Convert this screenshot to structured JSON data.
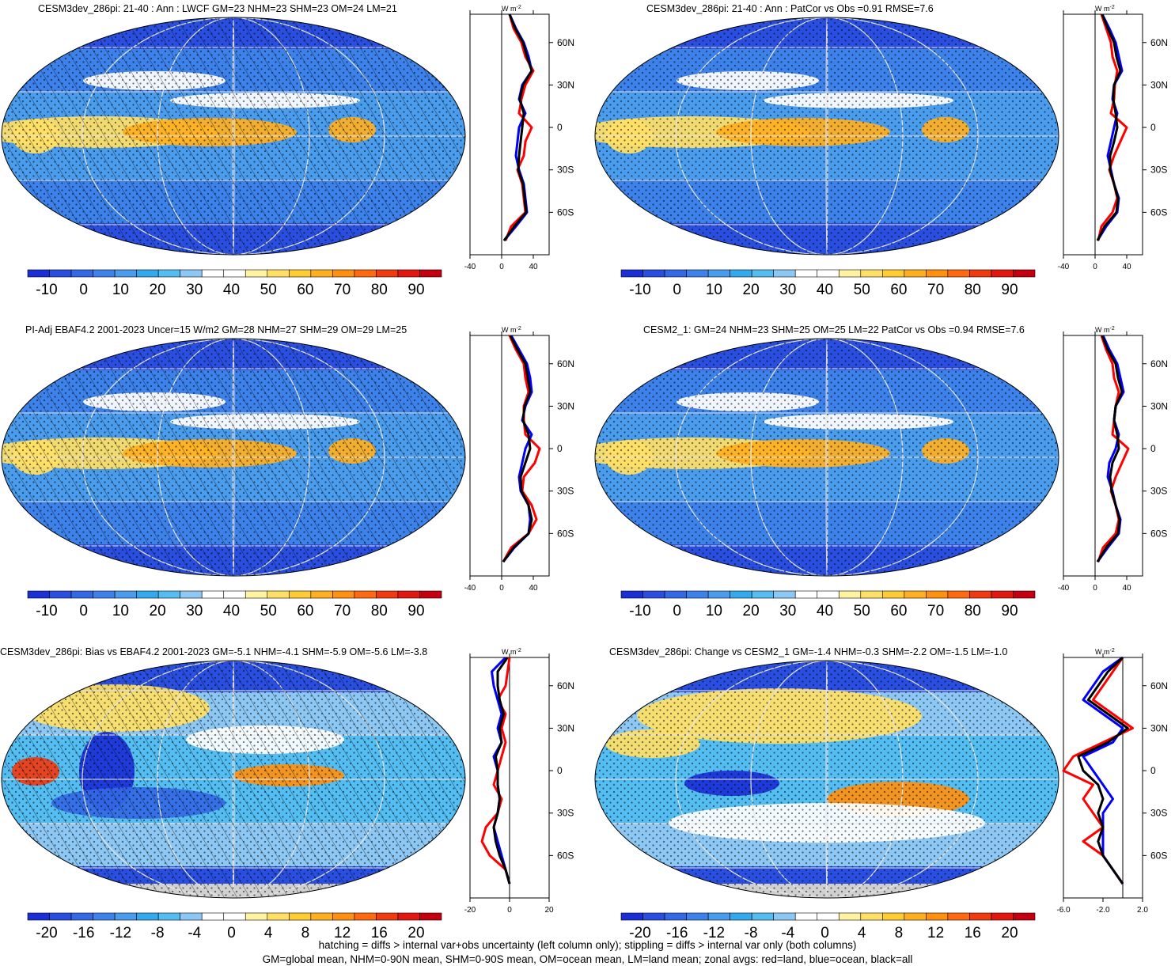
{
  "colors": {
    "scale": [
      "#1a2fd6",
      "#2a4fe0",
      "#3469e6",
      "#3d82ea",
      "#4a9ced",
      "#33a9ee",
      "#54bdf2",
      "#8cc8f3",
      "#ffffff",
      "#ffffff",
      "#fff2a0",
      "#ffe066",
      "#ffcc33",
      "#ffb020",
      "#ff9010",
      "#ff6a10",
      "#f03a10",
      "#e01810",
      "#c40010"
    ],
    "land": "#d0d0d0",
    "zonal_land": "#ff0000",
    "zonal_ocean": "#0000ff",
    "zonal_all": "#000000"
  },
  "units": {
    "w": "W",
    "m": "m",
    "exp": "-2"
  },
  "lat_labels": [
    "60N",
    "30N",
    "0",
    "30S",
    "60S"
  ],
  "panels": [
    {
      "title": "CESM3dev_286pi: 21-40 : Ann : LWCF GM=23 NHM=23 SHM=23 OM=24 LM=21",
      "hatched": true,
      "colorbar_labels": [
        "-10",
        "0",
        "10",
        "20",
        "30",
        "40",
        "50",
        "60",
        "70",
        "80",
        "90"
      ],
      "zonal_xticks": [
        "-40",
        "0",
        "40"
      ],
      "chart_data": {
        "type": "line",
        "ylabel": "",
        "xlim": [
          -40,
          60
        ],
        "x_axis_zero": 0,
        "series": [
          {
            "color_key": "zonal_land",
            "lat": [
              -80,
              -70,
              -60,
              -50,
              -40,
              -30,
              -20,
              -10,
              0,
              10,
              20,
              30,
              40,
              50,
              60,
              70,
              80
            ],
            "values": [
              5,
              12,
              30,
              28,
              26,
              20,
              28,
              30,
              38,
              22,
              25,
              30,
              40,
              30,
              25,
              15,
              10
            ]
          },
          {
            "color_key": "zonal_ocean",
            "lat": [
              -80,
              -70,
              -60,
              -50,
              -40,
              -30,
              -20,
              -10,
              0,
              10,
              20,
              30,
              40,
              50,
              60,
              70,
              80
            ],
            "values": [
              3,
              18,
              32,
              30,
              28,
              22,
              18,
              20,
              22,
              30,
              22,
              26,
              38,
              34,
              28,
              18,
              10
            ]
          },
          {
            "color_key": "zonal_all",
            "lat": [
              -80,
              -70,
              -60,
              -50,
              -40,
              -30,
              -20,
              -10,
              0,
              10,
              20,
              30,
              40,
              50,
              60,
              70,
              80
            ],
            "values": [
              3,
              16,
              31,
              29,
              27,
              21,
              22,
              24,
              26,
              28,
              23,
              27,
              38,
              32,
              27,
              17,
              10
            ]
          }
        ]
      }
    },
    {
      "title": "CESM3dev_286pi: 21-40 : Ann : PatCor vs Obs =0.91 RMSE=7.6",
      "hatched": false,
      "colorbar_labels": [
        "-10",
        "0",
        "10",
        "20",
        "30",
        "40",
        "50",
        "60",
        "70",
        "80",
        "90"
      ],
      "zonal_xticks": [
        "-40",
        "0",
        "40"
      ],
      "chart_data": {
        "type": "line",
        "ylabel": "",
        "xlim": [
          -40,
          60
        ],
        "x_axis_zero": 0,
        "series": [
          {
            "color_key": "zonal_land",
            "lat": [
              -80,
              -70,
              -60,
              -50,
              -40,
              -30,
              -20,
              -10,
              0,
              10,
              20,
              30,
              40,
              50,
              60,
              70,
              80
            ],
            "values": [
              4,
              8,
              22,
              28,
              24,
              18,
              24,
              32,
              40,
              20,
              24,
              25,
              28,
              22,
              20,
              14,
              8
            ]
          },
          {
            "color_key": "zonal_ocean",
            "lat": [
              -80,
              -70,
              -60,
              -50,
              -40,
              -30,
              -20,
              -10,
              0,
              10,
              20,
              30,
              40,
              50,
              60,
              70,
              80
            ],
            "values": [
              3,
              14,
              28,
              30,
              24,
              20,
              16,
              20,
              24,
              28,
              22,
              24,
              34,
              30,
              26,
              18,
              9
            ]
          },
          {
            "color_key": "zonal_all",
            "lat": [
              -80,
              -70,
              -60,
              -50,
              -40,
              -30,
              -20,
              -10,
              0,
              10,
              20,
              30,
              40,
              50,
              60,
              70,
              80
            ],
            "values": [
              3,
              12,
              27,
              29,
              24,
              19,
              19,
              24,
              28,
              26,
              23,
              24,
              32,
              27,
              24,
              16,
              9
            ]
          }
        ]
      }
    },
    {
      "title": "PI-Adj EBAF4.2 2001-2023 Uncer=15 W/m2 GM=28 NHM=27 SHM=29 OM=29 LM=25",
      "hatched": true,
      "colorbar_labels": [
        "-10",
        "0",
        "10",
        "20",
        "30",
        "40",
        "50",
        "60",
        "70",
        "80",
        "90"
      ],
      "zonal_xticks": [
        "-40",
        "0",
        "40"
      ],
      "chart_data": {
        "type": "line",
        "ylabel": "",
        "xlim": [
          -40,
          60
        ],
        "x_axis_zero": 0,
        "series": [
          {
            "color_key": "zonal_land",
            "lat": [
              -80,
              -70,
              -60,
              -50,
              -40,
              -30,
              -20,
              -10,
              0,
              10,
              20,
              30,
              40,
              50,
              60,
              70,
              80
            ],
            "values": [
              2,
              12,
              34,
              44,
              38,
              26,
              28,
              42,
              48,
              30,
              28,
              28,
              34,
              30,
              28,
              18,
              10
            ]
          },
          {
            "color_key": "zonal_ocean",
            "lat": [
              -80,
              -70,
              -60,
              -50,
              -40,
              -30,
              -20,
              -10,
              0,
              10,
              20,
              30,
              40,
              50,
              60,
              70,
              80
            ],
            "values": [
              2,
              16,
              34,
              36,
              34,
              24,
              22,
              26,
              30,
              38,
              26,
              30,
              38,
              36,
              32,
              22,
              12
            ]
          },
          {
            "color_key": "zonal_all",
            "lat": [
              -80,
              -70,
              -60,
              -50,
              -40,
              -30,
              -20,
              -10,
              0,
              10,
              20,
              30,
              40,
              50,
              60,
              70,
              80
            ],
            "values": [
              2,
              15,
              34,
              38,
              34,
              25,
              24,
              30,
              36,
              34,
              27,
              29,
              36,
              33,
              30,
              20,
              11
            ]
          }
        ]
      }
    },
    {
      "title": "CESM2_1: GM=24 NHM=23 SHM=25 OM=25 LM=22 PatCor vs Obs =0.94 RMSE=7.6",
      "hatched": false,
      "colorbar_labels": [
        "-10",
        "0",
        "10",
        "20",
        "30",
        "40",
        "50",
        "60",
        "70",
        "80",
        "90"
      ],
      "zonal_xticks": [
        "-40",
        "0",
        "40"
      ],
      "chart_data": {
        "type": "line",
        "ylabel": "",
        "xlim": [
          -40,
          60
        ],
        "x_axis_zero": 0,
        "series": [
          {
            "color_key": "zonal_land",
            "lat": [
              -80,
              -70,
              -60,
              -50,
              -40,
              -30,
              -20,
              -10,
              0,
              10,
              20,
              30,
              40,
              50,
              60,
              70,
              80
            ],
            "values": [
              4,
              10,
              26,
              30,
              26,
              20,
              26,
              34,
              42,
              22,
              24,
              26,
              30,
              24,
              22,
              14,
              8
            ]
          },
          {
            "color_key": "zonal_ocean",
            "lat": [
              -80,
              -70,
              -60,
              -50,
              -40,
              -30,
              -20,
              -10,
              0,
              10,
              20,
              30,
              40,
              50,
              60,
              70,
              80
            ],
            "values": [
              3,
              16,
              30,
              32,
              26,
              22,
              16,
              18,
              26,
              30,
              24,
              26,
              36,
              32,
              28,
              18,
              10
            ]
          },
          {
            "color_key": "zonal_all",
            "lat": [
              -80,
              -70,
              -60,
              -50,
              -40,
              -30,
              -20,
              -10,
              0,
              10,
              20,
              30,
              40,
              50,
              60,
              70,
              80
            ],
            "values": [
              3,
              14,
              29,
              31,
              26,
              21,
              19,
              22,
              30,
              28,
              24,
              26,
              34,
              29,
              26,
              16,
              9
            ]
          }
        ]
      }
    },
    {
      "title": "CESM3dev_286pi: Bias vs EBAF4.2 2001-2023 GM=-5.1 NHM=-4.1 SHM=-5.9 OM=-5.6 LM=-3.8",
      "hatched": true,
      "colorbar_labels": [
        "-20",
        "-16",
        "-12",
        "-8",
        "-4",
        "0",
        "4",
        "8",
        "12",
        "16",
        "20"
      ],
      "zonal_xticks": [
        "-20",
        "0",
        "20"
      ],
      "chart_data": {
        "type": "line",
        "ylabel": "",
        "xlim": [
          -20,
          20
        ],
        "x_axis_zero": 0,
        "series": [
          {
            "color_key": "zonal_land",
            "lat": [
              -80,
              -70,
              -60,
              -50,
              -40,
              -30,
              -20,
              -10,
              0,
              10,
              20,
              30,
              40,
              50,
              60,
              70,
              80
            ],
            "values": [
              0,
              -2,
              -10,
              -14,
              -12,
              -6,
              -4,
              -8,
              -6,
              -4,
              -2,
              -4,
              -2,
              -6,
              -2,
              -1,
              0
            ]
          },
          {
            "color_key": "zonal_ocean",
            "lat": [
              -80,
              -70,
              -60,
              -50,
              -40,
              -30,
              -20,
              -10,
              0,
              10,
              20,
              30,
              40,
              50,
              60,
              70,
              80
            ],
            "values": [
              0,
              -2,
              -4,
              -6,
              -8,
              -6,
              -5,
              -6,
              -6,
              -8,
              -4,
              -6,
              -4,
              -6,
              -8,
              -9,
              -2
            ]
          },
          {
            "color_key": "zonal_all",
            "lat": [
              -80,
              -70,
              -60,
              -50,
              -40,
              -30,
              -20,
              -10,
              0,
              10,
              20,
              30,
              40,
              50,
              60,
              70,
              80
            ],
            "values": [
              0,
              -2,
              -5,
              -7,
              -8,
              -6,
              -5,
              -6,
              -6,
              -7,
              -4,
              -5,
              -3,
              -5,
              -6,
              -6,
              -1
            ]
          }
        ]
      }
    },
    {
      "title": "CESM3dev_286pi: Change vs CESM2_1 GM=-1.4 NHM=-0.3 SHM=-2.2 OM=-1.5 LM=-1.0",
      "hatched": false,
      "colorbar_labels": [
        "-20",
        "-16",
        "-12",
        "-8",
        "-4",
        "0",
        "4",
        "8",
        "12",
        "16",
        "20"
      ],
      "zonal_xticks": [
        "-6.0",
        "-2.0",
        "2.0"
      ],
      "chart_data": {
        "type": "line",
        "ylabel": "",
        "xlim": [
          -6,
          2
        ],
        "x_axis_zero": 0,
        "series": [
          {
            "color_key": "zonal_land",
            "lat": [
              -80,
              -70,
              -60,
              -50,
              -40,
              -30,
              -20,
              -10,
              0,
              10,
              20,
              30,
              40,
              50,
              60,
              70,
              80
            ],
            "values": [
              0,
              -1,
              -2,
              -4,
              -2,
              -3,
              -4,
              -3,
              -6,
              -5,
              -2,
              1,
              -1,
              -3,
              -2,
              -1,
              0
            ]
          },
          {
            "color_key": "zonal_ocean",
            "lat": [
              -80,
              -70,
              -60,
              -50,
              -40,
              -30,
              -20,
              -10,
              0,
              10,
              20,
              30,
              40,
              50,
              60,
              70,
              80
            ],
            "values": [
              0,
              -1,
              -2,
              -2,
              -2,
              -2,
              -1,
              -2,
              -3,
              -4,
              -1,
              0,
              -2,
              -4,
              -3,
              -2,
              0
            ]
          },
          {
            "color_key": "zonal_all",
            "lat": [
              -80,
              -70,
              -60,
              -50,
              -40,
              -30,
              -20,
              -10,
              0,
              10,
              20,
              30,
              40,
              50,
              60,
              70,
              80
            ],
            "values": [
              0,
              -1,
              -2,
              -2.5,
              -2,
              -2.5,
              -2,
              -2.5,
              -4,
              -4.5,
              -1.5,
              0.5,
              -1.5,
              -3.5,
              -2.5,
              -1.5,
              0
            ]
          }
        ]
      }
    }
  ],
  "footer": {
    "line1": "hatching = diffs > internal var+obs uncertainty (left column only); stippling = diffs > internal var only (both columns)",
    "line2": "GM=global mean, NHM=0-90N mean, SHM=0-90S mean, OM=ocean mean, LM=land mean; zonal avgs: red=land, blue=ocean, black=all"
  }
}
